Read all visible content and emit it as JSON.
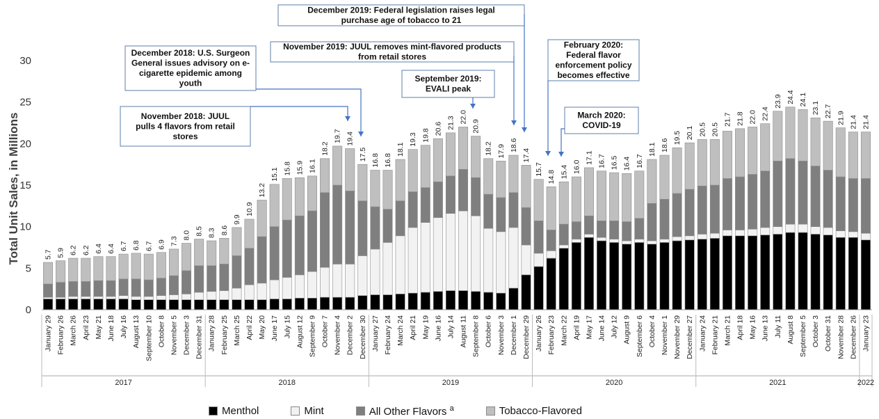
{
  "chart_data": {
    "type": "bar",
    "stacked": true,
    "ylabel": "Total Unit Sales, in Millions",
    "ylim": [
      0,
      30
    ],
    "yticks": [
      0,
      5,
      10,
      15,
      20,
      25,
      30
    ],
    "grid": false,
    "legend_position": "bottom",
    "categories": [
      "January 29",
      "February 26",
      "March 26",
      "April 23",
      "May 21",
      "June 18",
      "July 16",
      "August 13",
      "September 10",
      "October 8",
      "November 5",
      "December 3",
      "December 31",
      "January 28",
      "February 25",
      "March 25",
      "April 22",
      "May 20",
      "June 17",
      "July 15",
      "August 12",
      "September 9",
      "October 7",
      "November 4",
      "December 2",
      "December 30",
      "January 27",
      "February 24",
      "March 24",
      "April 21",
      "May 19",
      "June 16",
      "July 14",
      "August 11",
      "September 8",
      "October 6",
      "November 3",
      "December 1",
      "December 29",
      "January 26",
      "February 23",
      "March 22",
      "April 19",
      "May 17",
      "June 14",
      "July 12",
      "August 9",
      "September 6",
      "October 4",
      "November 1",
      "November 29",
      "December 27",
      "January 24",
      "February 21",
      "March 21",
      "April 18",
      "May 16",
      "June 13",
      "July 11",
      "August 8",
      "September 5",
      "October 3",
      "October 31",
      "November 28",
      "December 26",
      "January 23"
    ],
    "year_groups": [
      {
        "label": "2017",
        "count": 13
      },
      {
        "label": "2018",
        "count": 13
      },
      {
        "label": "2019",
        "count": 13
      },
      {
        "label": "2020",
        "count": 13
      },
      {
        "label": "2021",
        "count": 13
      },
      {
        "label": "2022",
        "count": 1
      }
    ],
    "totals": [
      5.7,
      5.9,
      6.2,
      6.2,
      6.4,
      6.4,
      6.7,
      6.8,
      6.7,
      6.9,
      7.3,
      8.0,
      8.5,
      8.3,
      8.6,
      9.9,
      10.9,
      13.2,
      15.1,
      15.8,
      15.9,
      16.1,
      18.2,
      19.7,
      19.4,
      17.5,
      16.8,
      16.8,
      18.1,
      19.3,
      19.8,
      20.6,
      21.3,
      22.0,
      20.9,
      18.2,
      17.9,
      18.6,
      17.4,
      15.7,
      14.8,
      15.4,
      16.0,
      17.1,
      16.7,
      16.5,
      16.4,
      16.7,
      18.1,
      18.6,
      19.5,
      20.1,
      20.5,
      20.5,
      21.7,
      21.8,
      22.0,
      22.4,
      23.9,
      24.4,
      24.1,
      23.1,
      22.7,
      21.9,
      21.4,
      21.4
    ],
    "series": [
      {
        "name": "Menthol",
        "color": "#000000",
        "values": [
          1.3,
          1.3,
          1.3,
          1.3,
          1.3,
          1.3,
          1.3,
          1.2,
          1.2,
          1.2,
          1.2,
          1.2,
          1.2,
          1.2,
          1.2,
          1.2,
          1.2,
          1.2,
          1.3,
          1.3,
          1.4,
          1.4,
          1.5,
          1.5,
          1.5,
          1.7,
          1.8,
          1.8,
          1.9,
          2.0,
          2.1,
          2.2,
          2.3,
          2.3,
          2.2,
          2.1,
          2.0,
          2.6,
          4.2,
          5.2,
          6.2,
          7.4,
          8.1,
          8.7,
          8.3,
          8.1,
          7.9,
          8.1,
          7.9,
          8.1,
          8.3,
          8.4,
          8.5,
          8.6,
          8.9,
          8.9,
          8.9,
          9.0,
          9.1,
          9.3,
          9.3,
          9.1,
          9.0,
          8.7,
          8.7,
          8.4
        ]
      },
      {
        "name": "Mint",
        "color": "#f2f2f2",
        "values": [
          0.2,
          0.2,
          0.3,
          0.3,
          0.3,
          0.3,
          0.4,
          0.4,
          0.4,
          0.5,
          0.6,
          0.7,
          0.9,
          1.0,
          1.1,
          1.4,
          1.8,
          2.0,
          2.3,
          2.6,
          2.8,
          3.2,
          3.6,
          4.0,
          4.0,
          4.8,
          5.5,
          6.3,
          7.0,
          7.9,
          8.4,
          8.9,
          9.3,
          9.6,
          9.1,
          7.7,
          7.4,
          7.3,
          3.6,
          1.6,
          0.9,
          0.4,
          0.4,
          0.4,
          0.4,
          0.4,
          0.4,
          0.4,
          0.4,
          0.4,
          0.5,
          0.5,
          0.6,
          0.6,
          0.7,
          0.7,
          0.8,
          0.9,
          0.9,
          1.0,
          1.0,
          0.9,
          0.9,
          0.8,
          0.7,
          0.8
        ]
      },
      {
        "name": "All Other Flavors",
        "color": "#7f7f7f",
        "values": [
          1.6,
          1.8,
          1.8,
          1.8,
          1.9,
          1.9,
          2.0,
          2.1,
          2.0,
          2.1,
          2.3,
          2.8,
          3.2,
          3.1,
          3.2,
          3.9,
          4.4,
          5.6,
          6.4,
          6.9,
          7.1,
          7.3,
          9.0,
          9.5,
          8.8,
          6.6,
          5.1,
          4.0,
          4.2,
          4.3,
          4.2,
          4.3,
          4.5,
          5.0,
          4.6,
          4.1,
          4.1,
          4.2,
          4.5,
          3.9,
          2.5,
          2.5,
          2.1,
          2.2,
          2.0,
          2.2,
          2.3,
          2.5,
          4.5,
          4.8,
          5.2,
          5.6,
          5.8,
          5.8,
          6.2,
          6.4,
          6.6,
          6.8,
          7.9,
          7.9,
          7.6,
          7.3,
          6.9,
          6.5,
          6.4,
          6.6
        ]
      },
      {
        "name": "Tobacco-Flavored",
        "color": "#bfbfbf",
        "values": [
          2.6,
          2.6,
          2.8,
          2.8,
          2.9,
          2.9,
          3.0,
          3.1,
          3.1,
          3.1,
          3.2,
          3.3,
          3.2,
          3.0,
          3.1,
          3.4,
          3.5,
          4.4,
          5.1,
          5.0,
          4.6,
          4.2,
          4.1,
          4.7,
          5.1,
          4.4,
          4.4,
          4.7,
          5.0,
          5.1,
          5.1,
          5.2,
          5.2,
          5.1,
          5.0,
          4.3,
          4.4,
          4.5,
          5.1,
          5.0,
          5.2,
          5.1,
          5.4,
          5.8,
          6.0,
          5.8,
          5.8,
          5.7,
          5.3,
          5.3,
          5.5,
          5.6,
          5.6,
          5.5,
          5.7,
          5.8,
          5.7,
          5.7,
          6.0,
          6.2,
          6.2,
          5.8,
          5.9,
          5.9,
          5.6,
          5.6
        ]
      }
    ],
    "annotations": [
      {
        "text": "November 2018: JUUL pulls 4 flavors from retail stores",
        "lines": [
          "November 2018: JUUL",
          "pulls 4 flavors from retail",
          "stores"
        ],
        "target_index": 23
      },
      {
        "text": "December 2018: U.S. Surgeon General issues advisory on e-cigarette epidemic among youth",
        "lines": [
          "December 2018: U.S. Surgeon",
          "General issues advisory on e-",
          "cigarette epidemic among",
          "youth"
        ],
        "target_index": 24
      },
      {
        "text": "December 2019: Federal legislation raises legal purchase age of tobacco to 21",
        "lines": [
          "December 2019: Federal legislation raises legal",
          "purchase age of tobacco to 21"
        ],
        "target_index": 38
      },
      {
        "text": "November 2019: JUUL removes mint-flavored products from retail stores",
        "lines": [
          "November 2019: JUUL removes mint-flavored products",
          "from retail stores"
        ],
        "target_index": 37
      },
      {
        "text": "September 2019: EVALI peak",
        "lines": [
          "September 2019:",
          "EVALI peak"
        ],
        "target_index": 34
      },
      {
        "text": "February 2020: Federal flavor enforcement policy becomes effective",
        "lines": [
          "February 2020:",
          "Federal flavor",
          "enforcement policy",
          "becomes effective"
        ],
        "target_index": 40
      },
      {
        "text": "March 2020: COVID-19",
        "lines": [
          "March 2020:",
          "COVID-19"
        ],
        "target_index": 41
      }
    ]
  },
  "legend": {
    "items": [
      {
        "label": "Menthol",
        "sup": "",
        "color": "#000000"
      },
      {
        "label": "Mint",
        "sup": "",
        "color": "#f2f2f2"
      },
      {
        "label": "All Other Flavors ",
        "sup": "a",
        "color": "#7f7f7f"
      },
      {
        "label": "Tobacco-Flavored",
        "sup": "",
        "color": "#bfbfbf"
      }
    ]
  }
}
